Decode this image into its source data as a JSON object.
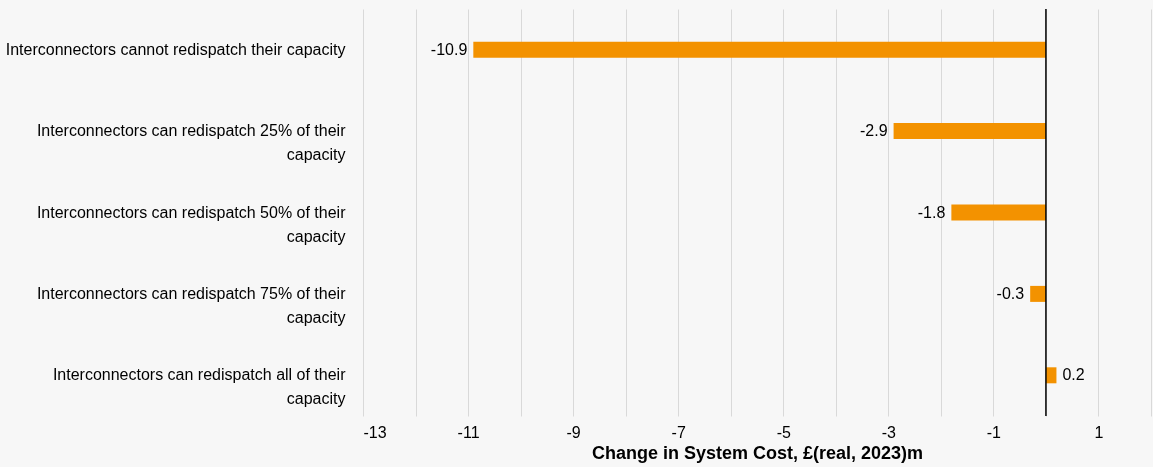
{
  "chart_data": {
    "type": "bar",
    "orientation": "horizontal",
    "categories": [
      "Interconnectors cannot redispatch their capacity",
      "Interconnectors can redispatch 25% of their capacity",
      "Interconnectors can redispatch 50% of their capacity",
      "Interconnectors can redispatch 75% of their capacity",
      "Interconnectors can redispatch all of their capacity"
    ],
    "values": [
      -10.9,
      -2.9,
      -1.8,
      -0.3,
      0.2
    ],
    "color": "#f39200",
    "xlabel": "Change in System Cost, £(real, 2023)m",
    "xlim": [
      -13,
      2
    ],
    "xticks": [
      -13,
      {
        "value": -12,
        "label": null
      },
      -11,
      {
        "value": -10,
        "label": null
      },
      -9,
      {
        "value": -8,
        "label": null
      },
      -7,
      {
        "value": -6,
        "label": null
      },
      -5,
      {
        "value": -4,
        "label": null
      },
      -3,
      {
        "value": -2,
        "label": null
      },
      -1,
      {
        "value": 0,
        "label": null
      },
      1,
      {
        "value": 2,
        "label": null
      }
    ],
    "grid": "x",
    "ref_lines": [
      {
        "axis": "x",
        "value": 0,
        "color": "#000000"
      }
    ],
    "data_labels": true
  }
}
